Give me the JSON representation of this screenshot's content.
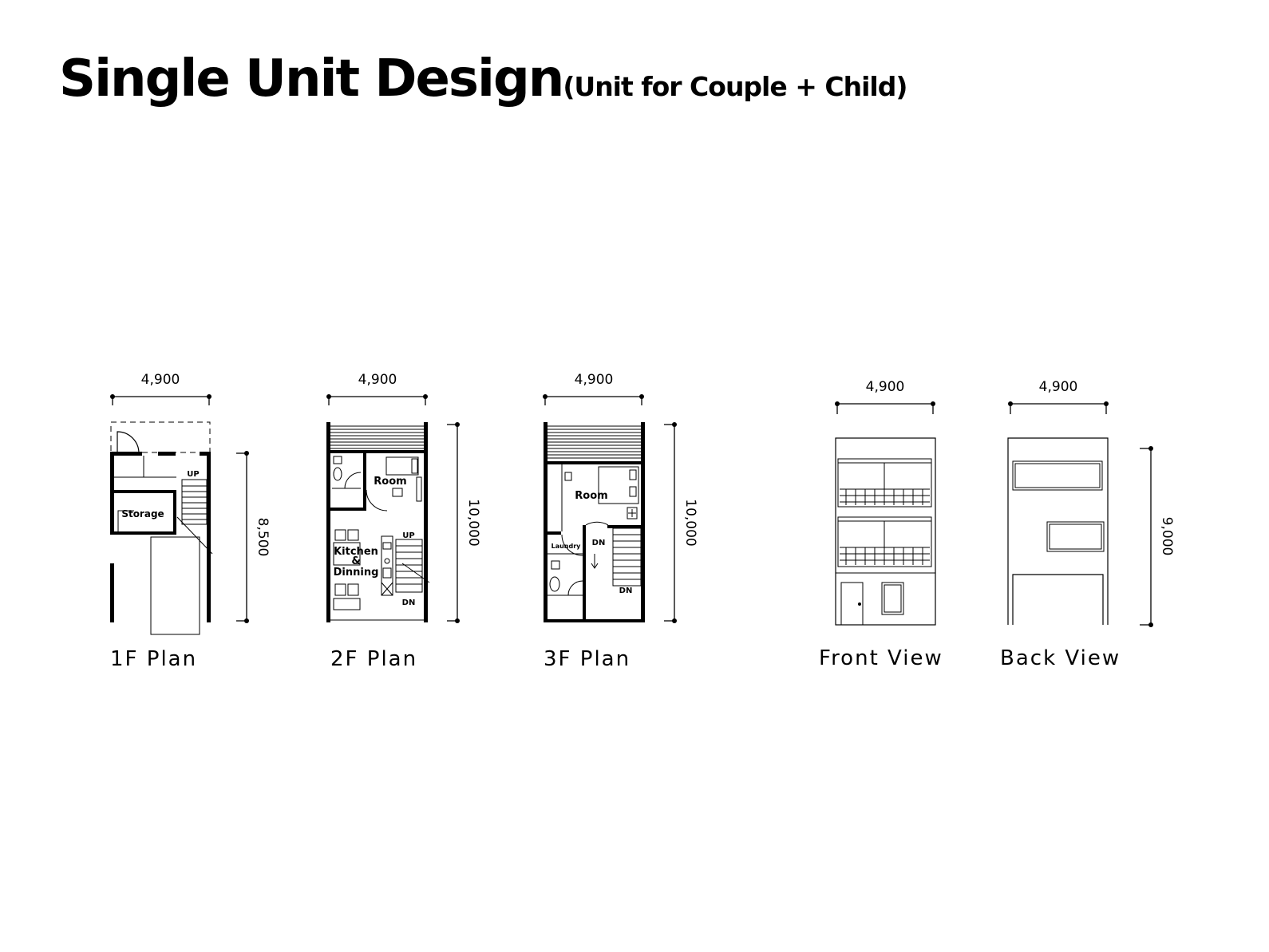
{
  "title": {
    "main": "Single Unit Design",
    "sub": "(Unit for Couple + Child)"
  },
  "drawings": {
    "plan_1f": {
      "caption": "1F Plan",
      "width_dim": "4,900",
      "height_dim": "8,500",
      "labels": {
        "up": "UP",
        "storage": "Storage"
      }
    },
    "plan_2f": {
      "caption": "2F Plan",
      "width_dim": "4,900",
      "height_dim": "10,000",
      "labels": {
        "room": "Room",
        "kitchen1": "Kitchen",
        "kitchen2": "&",
        "kitchen3": "Dinning",
        "up": "UP",
        "dn": "DN"
      }
    },
    "plan_3f": {
      "caption": "3F Plan",
      "width_dim": "4,900",
      "height_dim": "10,000",
      "labels": {
        "room": "Room",
        "laundry": "Laundry",
        "dn1": "DN",
        "dn2": "DN"
      }
    },
    "front_view": {
      "caption": "Front View",
      "width_dim": "4,900"
    },
    "back_view": {
      "caption": "Back View",
      "width_dim": "4,900",
      "height_dim": "9,000"
    }
  }
}
